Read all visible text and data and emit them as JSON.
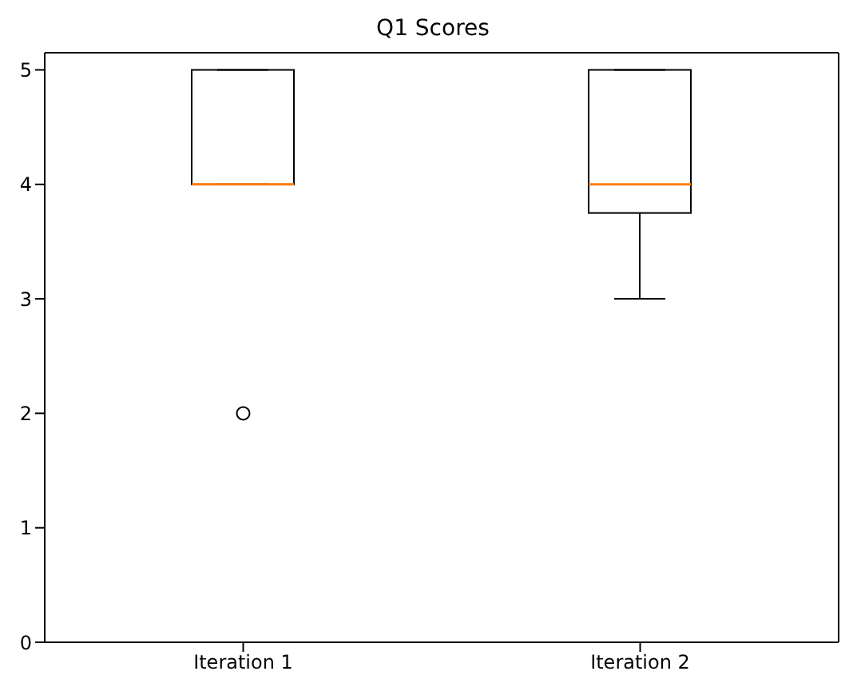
{
  "chart_data": {
    "type": "box",
    "title": "Q1 Scores",
    "categories": [
      "Iteration 1",
      "Iteration 2"
    ],
    "boxes": [
      {
        "low": 4,
        "q1": 4,
        "median": 4,
        "q3": 5,
        "high": 5,
        "outliers": [
          2
        ]
      },
      {
        "low": 3,
        "q1": 3.75,
        "median": 4,
        "q3": 5,
        "high": 5
      }
    ],
    "color": "#000000",
    "ylim": [
      0,
      5.15
    ],
    "yticks": [
      0,
      1,
      2,
      3,
      4,
      5
    ],
    "grid": false,
    "legend": false
  }
}
